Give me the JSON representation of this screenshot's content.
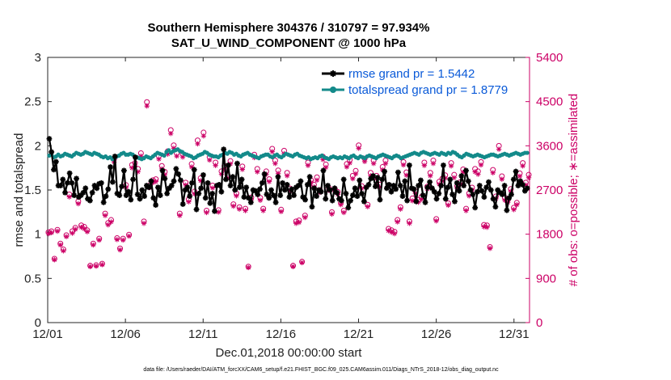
{
  "chart_data": {
    "type": "line",
    "title_line1": "Southern Hemisphere 304376 / 310797 = 97.934%",
    "title_line2": "SAT_U_WIND_COMPONENT @ 1000 hPa",
    "xlabel": "Dec.01,2018 00:00:00 start",
    "ylabel": "rmse and totalspread",
    "y2label": "# of obs: o=possible; ∗=assimilated",
    "footnote": "data file: /Users/raeder/DAI/ATM_forcXX/CAM6_setup/f.e21.FHIST_BGC.f09_025.CAM6assim.011/Diags_NTrS_2018-12/obs_diag_output.nc",
    "xlim": [
      0,
      31
    ],
    "ylim": [
      0,
      3
    ],
    "y2lim": [
      0,
      5400
    ],
    "x_ticks": [
      0,
      5,
      10,
      15,
      20,
      25,
      30
    ],
    "x_tick_labels": [
      "12/01",
      "12/06",
      "12/11",
      "12/16",
      "12/21",
      "12/26",
      "12/31"
    ],
    "y_ticks": [
      0,
      0.5,
      1,
      1.5,
      2,
      2.5,
      3
    ],
    "y_tick_labels": [
      "0",
      "0.5",
      "1",
      "1.5",
      "2",
      "2.5",
      "3"
    ],
    "y2_ticks": [
      0,
      900,
      1800,
      2700,
      3600,
      4500,
      5400
    ],
    "y2_tick_labels": [
      "0",
      "900",
      "1800",
      "2700",
      "3600",
      "4500",
      "5400"
    ],
    "legend_location": "top-right",
    "series": [
      {
        "name": "rmse grand pr = 1.5442",
        "color": "#000000",
        "marker": "star",
        "values": [
          2.08,
          1.93,
          1.73,
          1.82,
          1.55,
          1.55,
          1.62,
          1.47,
          1.58,
          1.69,
          1.58,
          1.44,
          1.63,
          1.42,
          1.44,
          1.47,
          1.52,
          1.4,
          1.38,
          1.47,
          1.55,
          1.52,
          1.57,
          1.58,
          1.36,
          1.43,
          1.51,
          1.76,
          1.59,
          1.88,
          1.46,
          1.44,
          1.54,
          1.72,
          1.44,
          1.48,
          1.39,
          1.62,
          1.87,
          1.45,
          1.4,
          1.5,
          1.43,
          1.55,
          1.53,
          1.6,
          1.41,
          1.33,
          1.53,
          1.44,
          1.72,
          1.63,
          1.46,
          1.52,
          1.55,
          1.6,
          1.74,
          1.68,
          1.61,
          1.34,
          1.5,
          1.53,
          1.43,
          1.58,
          1.73,
          1.28,
          1.46,
          1.52,
          1.67,
          1.41,
          1.58,
          1.35,
          1.46,
          1.26,
          1.55,
          1.56,
          1.48,
          1.96,
          1.62,
          1.78,
          1.55,
          1.65,
          1.5,
          1.8,
          1.53,
          1.62,
          1.42,
          1.53,
          1.41,
          1.36,
          1.5,
          1.49,
          1.45,
          1.51,
          1.58,
          1.68,
          1.45,
          1.41,
          1.5,
          1.44,
          1.36,
          1.65,
          1.44,
          1.58,
          1.5,
          1.56,
          1.42,
          1.51,
          1.44,
          1.53,
          1.55,
          1.6,
          1.42,
          1.39,
          1.56,
          1.65,
          1.31,
          1.52,
          1.43,
          1.5,
          1.48,
          1.72,
          1.4,
          1.55,
          1.5,
          1.38,
          1.52,
          1.47,
          1.4,
          1.38,
          1.62,
          1.46,
          1.3,
          1.38,
          1.44,
          1.52,
          1.43,
          1.61,
          1.46,
          1.37,
          1.53,
          1.56,
          1.63,
          1.66,
          1.54,
          1.64,
          1.39,
          1.62,
          1.71,
          1.52,
          1.56,
          1.48,
          1.55,
          1.51,
          1.7,
          1.55,
          1.43,
          1.6,
          1.38,
          1.78,
          1.52,
          1.51,
          1.37,
          1.55,
          1.61,
          1.44,
          1.36,
          1.53,
          1.59,
          1.52,
          1.48,
          1.4,
          1.46,
          1.55,
          1.78,
          1.4,
          1.53,
          1.62,
          1.45,
          1.37,
          1.58,
          1.49,
          1.66,
          1.55,
          1.72,
          1.6,
          1.5,
          1.45,
          1.3,
          1.48,
          1.55,
          1.49,
          1.42,
          1.53,
          1.59,
          1.5,
          1.4,
          1.31,
          1.5,
          1.47,
          1.45,
          1.55,
          1.27,
          1.41,
          1.45,
          1.62,
          1.71,
          1.55,
          1.6,
          1.56,
          1.49,
          1.52
        ]
      },
      {
        "name": "totalspread grand pr = 1.8779",
        "color": "#138a8a",
        "marker": "circle",
        "values": [
          1.89,
          1.9,
          1.87,
          1.88,
          1.9,
          1.88,
          1.89,
          1.91,
          1.9,
          1.89,
          1.88,
          1.9,
          1.92,
          1.91,
          1.9,
          1.91,
          1.93,
          1.92,
          1.91,
          1.9,
          1.92,
          1.91,
          1.9,
          1.88,
          1.87,
          1.88,
          1.86,
          1.87,
          1.85,
          1.86,
          1.88,
          1.89,
          1.91,
          1.92,
          1.9,
          1.9,
          1.91,
          1.9,
          1.88,
          1.87,
          1.86,
          1.85,
          1.86,
          1.88,
          1.87,
          1.86,
          1.88,
          1.9,
          1.92,
          1.91,
          1.9,
          1.89,
          1.93,
          1.95,
          1.92,
          1.94,
          1.95,
          1.96,
          1.94,
          1.93,
          1.91,
          1.9,
          1.89,
          1.88,
          1.86,
          1.87,
          1.89,
          1.9,
          1.91,
          1.93,
          1.92,
          1.9,
          1.89,
          1.88,
          1.88,
          1.87,
          1.89,
          1.9,
          1.92,
          1.91,
          1.93,
          1.92,
          1.9,
          1.91,
          1.89,
          1.88,
          1.9,
          1.91,
          1.92,
          1.9,
          1.89,
          1.88,
          1.87,
          1.86,
          1.88,
          1.89,
          1.9,
          1.9,
          1.88,
          1.87,
          1.89,
          1.9,
          1.88,
          1.87,
          1.89,
          1.91,
          1.9,
          1.89,
          1.88,
          1.9,
          1.91,
          1.89,
          1.88,
          1.87,
          1.86,
          1.87,
          1.85,
          1.86,
          1.87,
          1.86,
          1.88,
          1.89,
          1.87,
          1.86,
          1.85,
          1.87,
          1.88,
          1.87,
          1.86,
          1.87,
          1.86,
          1.88,
          1.87,
          1.86,
          1.88,
          1.89,
          1.87,
          1.86,
          1.88,
          1.87,
          1.86,
          1.88,
          1.89,
          1.88,
          1.87,
          1.86,
          1.88,
          1.89,
          1.9,
          1.89,
          1.88,
          1.87,
          1.86,
          1.88,
          1.89,
          1.88,
          1.86,
          1.87,
          1.88,
          1.89,
          1.9,
          1.91,
          1.92,
          1.91,
          1.9,
          1.92,
          1.93,
          1.92,
          1.91,
          1.9,
          1.91,
          1.92,
          1.91,
          1.9,
          1.92,
          1.91,
          1.9,
          1.92,
          1.91,
          1.93,
          1.92,
          1.9,
          1.88,
          1.87,
          1.89,
          1.91,
          1.9,
          1.89,
          1.88,
          1.89,
          1.9,
          1.89,
          1.88,
          1.87,
          1.88,
          1.89,
          1.9,
          1.9,
          1.89,
          1.88,
          1.89,
          1.9,
          1.91,
          1.9,
          1.89,
          1.9,
          1.91,
          1.92,
          1.91,
          1.9,
          1.91,
          1.92,
          1.92
        ]
      }
    ],
    "obs_possible": [
      1840,
      1860,
      1300,
      1890,
      1610,
      1490,
      1780,
      2610,
      1860,
      1930,
      2470,
      1980,
      1950,
      1880,
      1160,
      1610,
      1170,
      1710,
      1200,
      2220,
      2030,
      2090,
      3330,
      1720,
      1510,
      1710,
      2800,
      1790,
      3210,
      3250,
      3130,
      3450,
      2060,
      4490,
      2800,
      2900,
      2920,
      3390,
      3190,
      3070,
      3490,
      3920,
      3610,
      3450,
      2220,
      3430,
      2850,
      2510,
      3230,
      2670,
      3710,
      2940,
      3870,
      2280,
      3370,
      2790,
      3260,
      2290,
      3080,
      3190,
      3000,
      3290,
      2410,
      2630,
      2350,
      3180,
      2320,
      1140,
      2550,
      3420,
      3130,
      2540,
      2320,
      3080,
      2920,
      3540,
      3300,
      3100,
      2300,
      3500,
      3050,
      2730,
      1160,
      2060,
      2080,
      1240,
      2180,
      3260,
      2900,
      2810,
      2960,
      2700,
      3380,
      3220,
      2740,
      2250,
      2720,
      2660,
      2440,
      2280,
      3230,
      3310,
      2990,
      3090,
      3610,
      2780,
      3340,
      2400,
      3050,
      3300,
      2990,
      2810,
      3170,
      3300,
      1910,
      1880,
      1850,
      2090,
      2350,
      3270,
      3060,
      2060,
      2530,
      2680,
      2500,
      2560,
      3260,
      2770,
      3050,
      3300,
      2110,
      2870,
      2930,
      3000,
      2430,
      3250,
      3010,
      2780,
      2860,
      3120,
      2320,
      2630,
      2750,
      3130,
      3080,
      3270,
      1990,
      1980,
      1540,
      3110,
      2570,
      3600,
      2980,
      2540,
      2500,
      2720,
      2340,
      2440,
      3040,
      3250,
      2850,
      3010
    ],
    "obs_assimilated": [
      1810,
      1830,
      1280,
      1860,
      1580,
      1460,
      1750,
      2560,
      1820,
      1900,
      2420,
      1940,
      1910,
      1850,
      1140,
      1580,
      1150,
      1680,
      1180,
      2180,
      1990,
      2050,
      3270,
      1690,
      1480,
      1680,
      2750,
      1760,
      3150,
      3190,
      3070,
      3390,
      2020,
      4410,
      2750,
      2850,
      2870,
      3330,
      3130,
      3010,
      3430,
      3850,
      3550,
      3390,
      2180,
      3370,
      2800,
      2460,
      3170,
      2620,
      3640,
      2890,
      3800,
      2240,
      3310,
      2740,
      3200,
      2250,
      3020,
      3130,
      2940,
      3230,
      2370,
      2580,
      2310,
      3120,
      2280,
      1120,
      2500,
      3360,
      3070,
      2490,
      2280,
      3020,
      2870,
      3480,
      3240,
      3040,
      2260,
      3440,
      2990,
      2680,
      1140,
      2020,
      2040,
      1220,
      2140,
      3200,
      2850,
      2760,
      2900,
      2650,
      3320,
      3160,
      2690,
      2210,
      2670,
      2610,
      2400,
      2240,
      3170,
      3250,
      2930,
      3030,
      3550,
      2730,
      3280,
      2360,
      2990,
      3240,
      2930,
      2760,
      3110,
      3240,
      1870,
      1840,
      1810,
      2050,
      2310,
      3210,
      3000,
      2020,
      2480,
      2630,
      2450,
      2510,
      3200,
      2720,
      2990,
      3240,
      2070,
      2820,
      2880,
      2940,
      2390,
      3190,
      2950,
      2730,
      2810,
      3060,
      2280,
      2580,
      2700,
      3070,
      3020,
      3210,
      1950,
      1940,
      1510,
      3050,
      2520,
      3530,
      2920,
      2490,
      2450,
      2670,
      2300,
      2400,
      2980,
      3190,
      2800,
      2950
    ]
  }
}
